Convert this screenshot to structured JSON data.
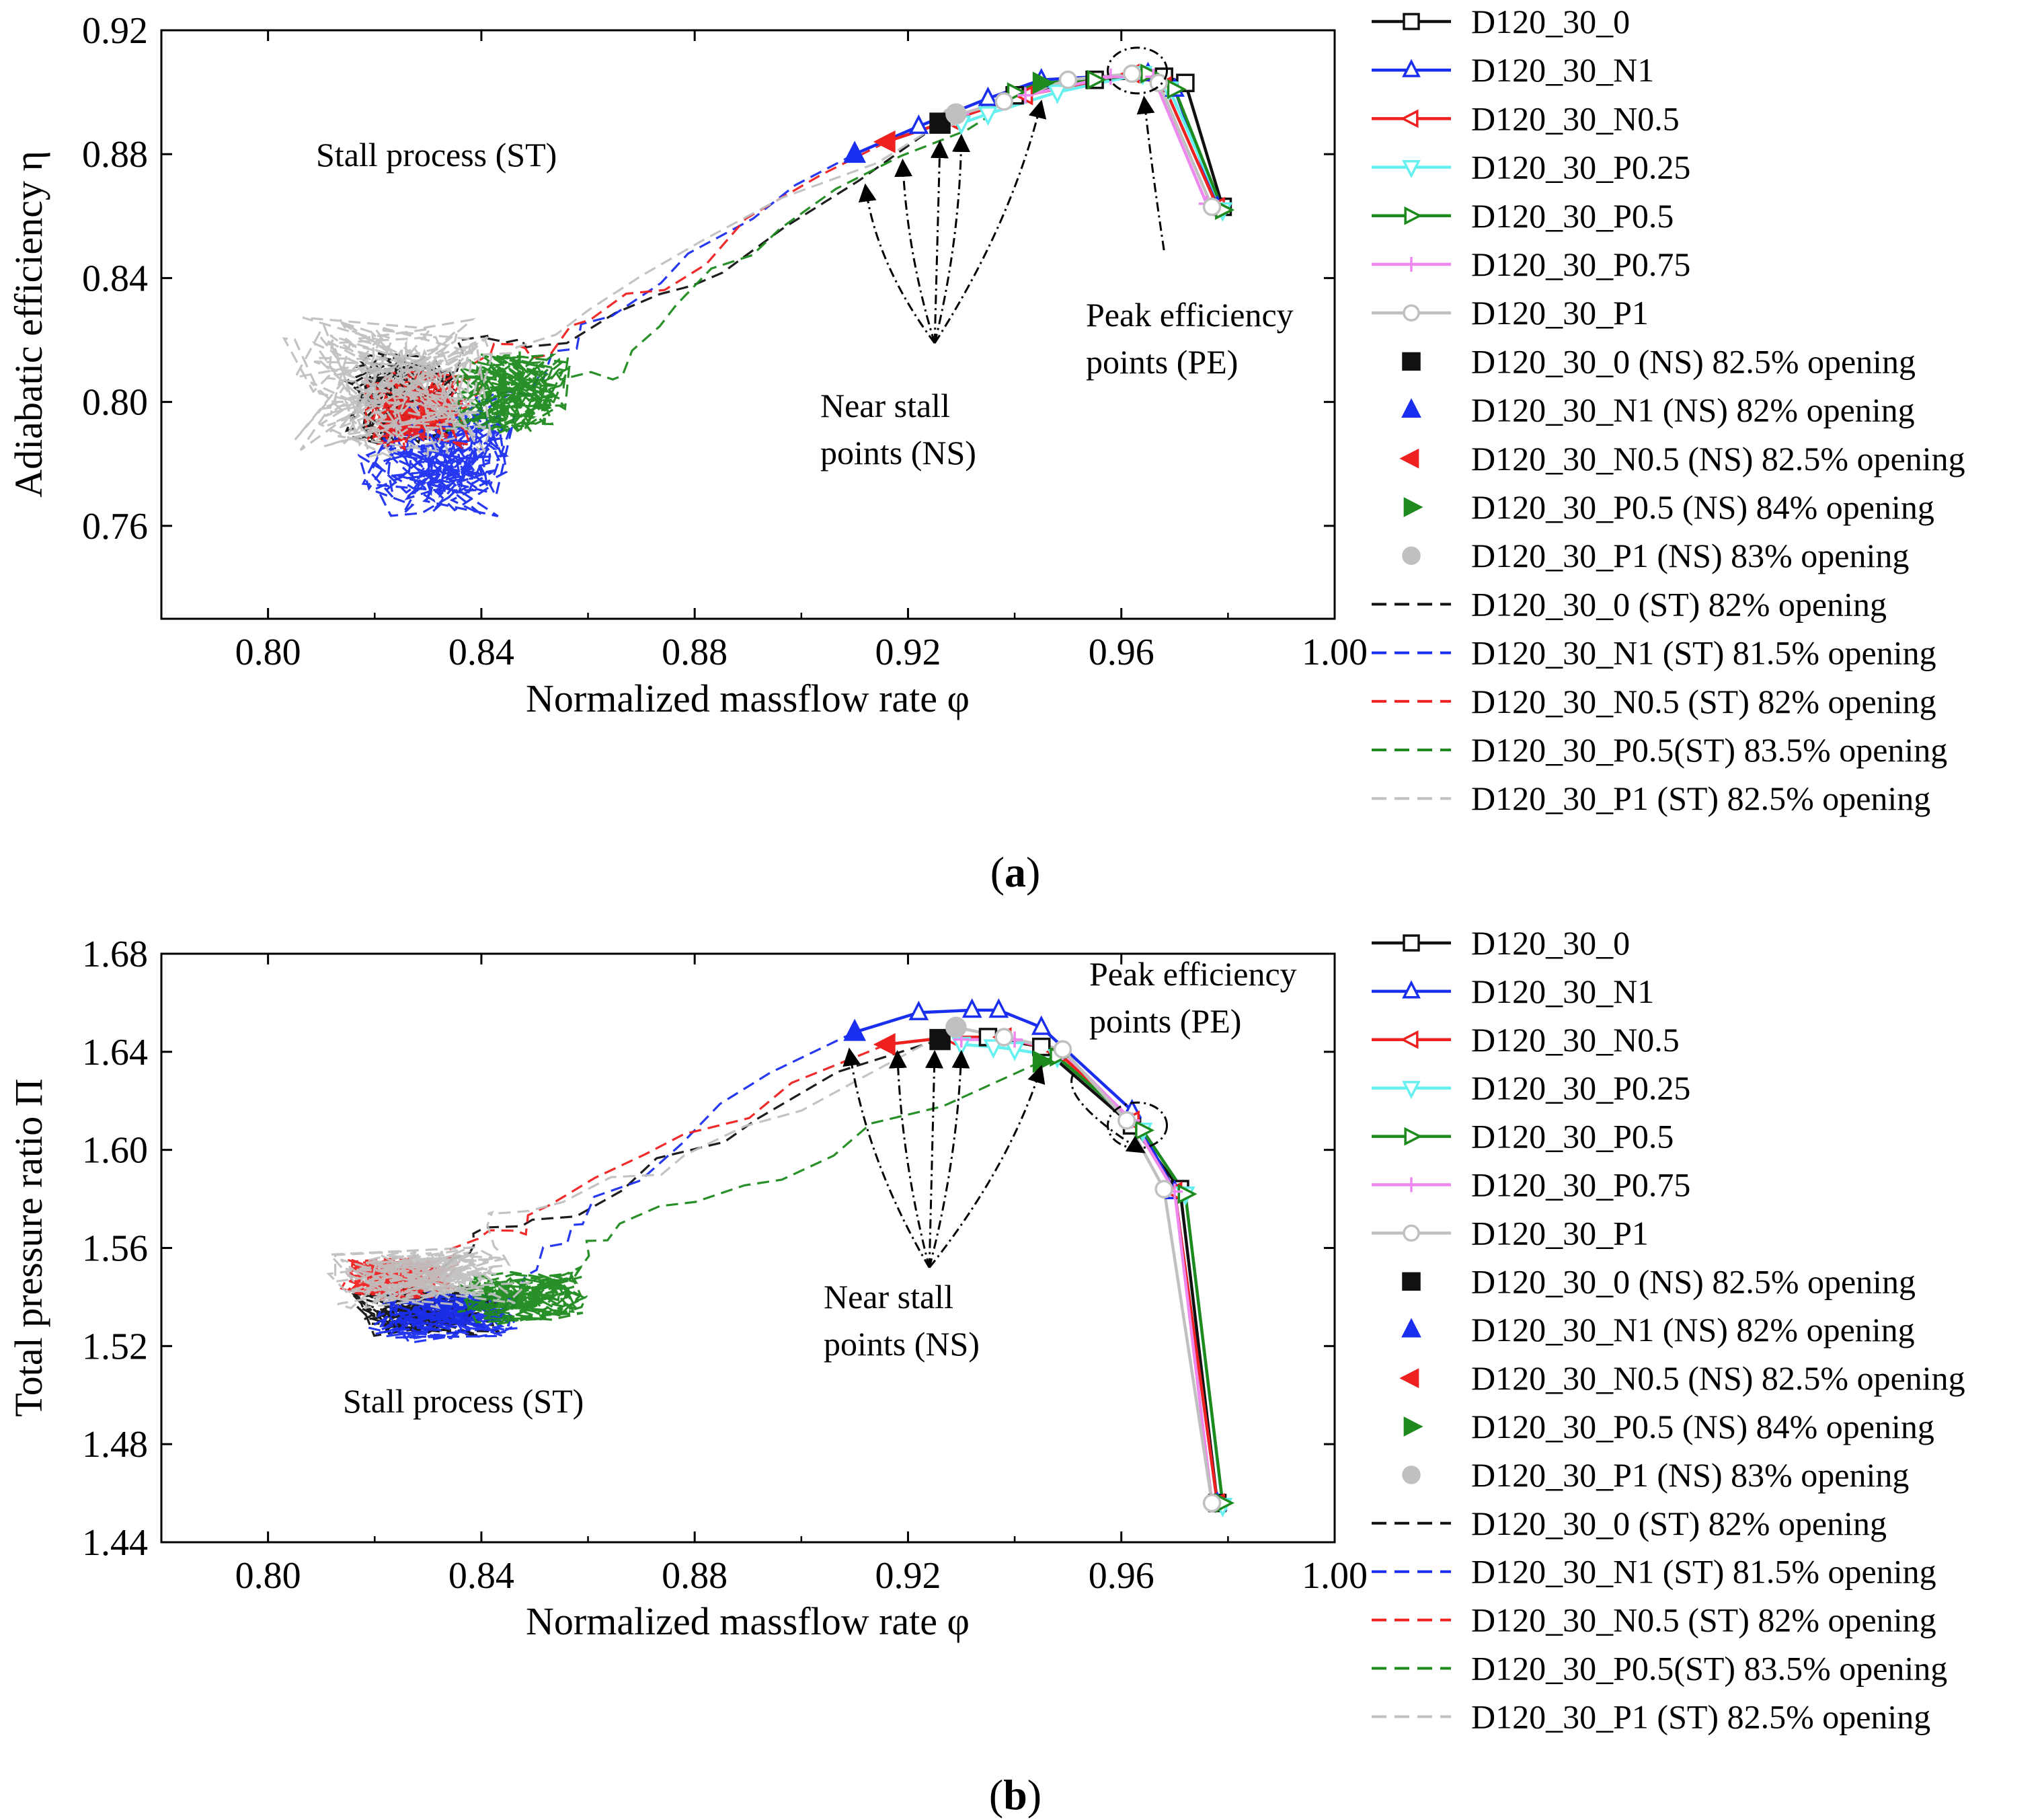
{
  "colors": {
    "D120_30_0": "#111111",
    "D120_30_N1": "#1a2ef0",
    "D120_30_N0.5": "#ee2020",
    "D120_30_P0.25": "#66f0f0",
    "D120_30_P0.5": "#1e8a1e",
    "D120_30_P0.75": "#ee88ee",
    "D120_30_P1": "#c0c0c0"
  },
  "legend": [
    {
      "label": "D120_30_0",
      "kind": "line",
      "key": "D120_30_0",
      "marker": "square-open"
    },
    {
      "label": "D120_30_N1",
      "kind": "line",
      "key": "D120_30_N1",
      "marker": "tri-up-open"
    },
    {
      "label": "D120_30_N0.5",
      "kind": "line",
      "key": "D120_30_N0.5",
      "marker": "tri-left-open"
    },
    {
      "label": "D120_30_P0.25",
      "kind": "line",
      "key": "D120_30_P0.25",
      "marker": "tri-down-open"
    },
    {
      "label": "D120_30_P0.5",
      "kind": "line",
      "key": "D120_30_P0.5",
      "marker": "tri-right-open"
    },
    {
      "label": "D120_30_P0.75",
      "kind": "line",
      "key": "D120_30_P0.75",
      "marker": "plus"
    },
    {
      "label": "D120_30_P1",
      "kind": "line",
      "key": "D120_30_P1",
      "marker": "circle-open"
    },
    {
      "label": "D120_30_0 (NS) 82.5% opening",
      "kind": "marker",
      "key": "D120_30_0",
      "marker": "square"
    },
    {
      "label": "D120_30_N1 (NS) 82% opening",
      "kind": "marker",
      "key": "D120_30_N1",
      "marker": "tri-up"
    },
    {
      "label": "D120_30_N0.5 (NS) 82.5% opening",
      "kind": "marker",
      "key": "D120_30_N0.5",
      "marker": "tri-left"
    },
    {
      "label": "D120_30_P0.5 (NS) 84% opening",
      "kind": "marker",
      "key": "D120_30_P0.5",
      "marker": "tri-right"
    },
    {
      "label": "D120_30_P1 (NS) 83% opening",
      "kind": "marker",
      "key": "D120_30_P1",
      "marker": "circle"
    },
    {
      "label": "D120_30_0 (ST) 82% opening",
      "kind": "dash",
      "key": "D120_30_0"
    },
    {
      "label": "D120_30_N1 (ST) 81.5% opening",
      "kind": "dash",
      "key": "D120_30_N1"
    },
    {
      "label": "D120_30_N0.5 (ST) 82% opening",
      "kind": "dash",
      "key": "D120_30_N0.5"
    },
    {
      "label": "D120_30_P0.5(ST) 83.5% opening",
      "kind": "dash",
      "key": "D120_30_P0.5"
    },
    {
      "label": "D120_30_P1 (ST) 82.5% opening",
      "kind": "dash",
      "key": "D120_30_P1"
    }
  ],
  "chart_data": [
    {
      "type": "line",
      "panel": "(a)",
      "caption": "a",
      "xlabel": "Normalized massflow rate φ",
      "ylabel": "Adiabatic efficiency η",
      "xlim": [
        0.78,
        1.0
      ],
      "ylim": [
        0.73,
        0.92
      ],
      "xticks": [
        "0.80",
        "0.84",
        "0.88",
        "0.92",
        "0.96",
        "1.00"
      ],
      "yticks": [
        "0.76",
        "0.80",
        "0.84",
        "0.88",
        "0.92"
      ],
      "annotations": {
        "stall": "Stall process (ST)",
        "near_stall_1": "Near stall",
        "near_stall_2": "points (NS)",
        "peak_1": "Peak efficiency",
        "peak_2": "points (PE)"
      },
      "series": [
        {
          "name": "D120_30_0",
          "marker": "square-open",
          "x": [
            0.926,
            0.94,
            0.955,
            0.968,
            0.972,
            0.979
          ],
          "y": [
            0.89,
            0.899,
            0.904,
            0.905,
            0.903,
            0.863
          ]
        },
        {
          "name": "D120_30_N1",
          "marker": "tri-up-open",
          "x": [
            0.91,
            0.922,
            0.935,
            0.945,
            0.965,
            0.97,
            0.978
          ],
          "y": [
            0.88,
            0.889,
            0.898,
            0.904,
            0.906,
            0.901,
            0.863
          ]
        },
        {
          "name": "D120_30_N0.5",
          "marker": "tri-left-open",
          "x": [
            0.916,
            0.928,
            0.942,
            0.962,
            0.968,
            0.978
          ],
          "y": [
            0.884,
            0.891,
            0.899,
            0.906,
            0.902,
            0.863
          ]
        },
        {
          "name": "D120_30_P0.25",
          "marker": "tri-down-open",
          "x": [
            0.93,
            0.935,
            0.948,
            0.964,
            0.969,
            0.979
          ],
          "y": [
            0.89,
            0.893,
            0.9,
            0.906,
            0.901,
            0.862
          ]
        },
        {
          "name": "D120_30_P0.5",
          "marker": "tri-right-open",
          "x": [
            0.94,
            0.945,
            0.955,
            0.965,
            0.97,
            0.979
          ],
          "y": [
            0.9,
            0.903,
            0.904,
            0.906,
            0.901,
            0.862
          ]
        },
        {
          "name": "D120_30_P0.75",
          "marker": "plus",
          "x": [
            0.93,
            0.942,
            0.958,
            0.966,
            0.976
          ],
          "y": [
            0.893,
            0.899,
            0.905,
            0.905,
            0.864
          ]
        },
        {
          "name": "D120_30_P1",
          "marker": "circle-open",
          "x": [
            0.928,
            0.938,
            0.95,
            0.962,
            0.967,
            0.977
          ],
          "y": [
            0.892,
            0.897,
            0.904,
            0.906,
            0.903,
            0.863
          ]
        }
      ],
      "near_stall": [
        {
          "name": "D120_30_0",
          "marker": "square",
          "x": 0.926,
          "y": 0.89
        },
        {
          "name": "D120_30_N1",
          "marker": "tri-up",
          "x": 0.91,
          "y": 0.88
        },
        {
          "name": "D120_30_N0.5",
          "marker": "tri-left",
          "x": 0.916,
          "y": 0.884
        },
        {
          "name": "D120_30_P0.5",
          "marker": "tri-right",
          "x": 0.945,
          "y": 0.903
        },
        {
          "name": "D120_30_P1",
          "marker": "circle",
          "x": 0.929,
          "y": 0.893
        }
      ],
      "stall_process": [
        {
          "name": "D120_30_0",
          "x_range": [
            0.8,
            0.9
          ],
          "y_range": [
            0.75,
            0.88
          ],
          "center": [
            0.825,
            0.8
          ],
          "scatter": [
            0.012,
            0.018
          ],
          "start": [
            0.926,
            0.89
          ]
        },
        {
          "name": "D120_30_N1",
          "x_range": [
            0.8,
            0.88
          ],
          "y_range": [
            0.74,
            0.86
          ],
          "center": [
            0.832,
            0.783
          ],
          "scatter": [
            0.016,
            0.022
          ],
          "start": [
            0.91,
            0.88
          ]
        },
        {
          "name": "D120_30_N0.5",
          "x_range": [
            0.81,
            0.88
          ],
          "y_range": [
            0.76,
            0.85
          ],
          "center": [
            0.828,
            0.797
          ],
          "scatter": [
            0.012,
            0.015
          ],
          "start": [
            0.916,
            0.884
          ]
        },
        {
          "name": "D120_30_P0.5",
          "x_range": [
            0.82,
            0.88
          ],
          "y_range": [
            0.77,
            0.86
          ],
          "center": [
            0.845,
            0.803
          ],
          "scatter": [
            0.014,
            0.016
          ],
          "start": [
            0.945,
            0.903
          ]
        },
        {
          "name": "D120_30_P1",
          "x_range": [
            0.78,
            0.87
          ],
          "y_range": [
            0.73,
            0.87
          ],
          "center": [
            0.823,
            0.805
          ],
          "scatter": [
            0.022,
            0.028
          ],
          "start": [
            0.929,
            0.893
          ]
        }
      ],
      "pe_circle": [
        0.963,
        0.907
      ],
      "ns_arrow_origin": [
        0.925,
        0.819
      ],
      "pe_arrow_origin": [
        0.968,
        0.849
      ],
      "ns_arrow_targets": [
        [
          0.912,
          0.87
        ],
        [
          0.919,
          0.878
        ],
        [
          0.926,
          0.884
        ],
        [
          0.93,
          0.886
        ],
        [
          0.945,
          0.897
        ]
      ]
    },
    {
      "type": "line",
      "panel": "(b)",
      "caption": "b",
      "xlabel": "Normalized massflow rate φ",
      "ylabel": "Total pressure ratio Π",
      "xlim": [
        0.78,
        1.0
      ],
      "ylim": [
        1.44,
        1.68
      ],
      "xticks": [
        "0.80",
        "0.84",
        "0.88",
        "0.92",
        "0.96",
        "1.00"
      ],
      "yticks": [
        "1.44",
        "1.48",
        "1.52",
        "1.56",
        "1.60",
        "1.64",
        "1.68"
      ],
      "annotations": {
        "stall": "Stall process (ST)",
        "near_stall_1": "Near stall",
        "near_stall_2": "points (NS)",
        "peak_1": "Peak efficiency",
        "peak_2": "points (PE)"
      },
      "series": [
        {
          "name": "D120_30_0",
          "marker": "square-open",
          "x": [
            0.926,
            0.935,
            0.945,
            0.962,
            0.971,
            0.978
          ],
          "y": [
            1.645,
            1.646,
            1.642,
            1.61,
            1.584,
            1.456
          ]
        },
        {
          "name": "D120_30_N1",
          "marker": "tri-up-open",
          "x": [
            0.91,
            0.922,
            0.932,
            0.937,
            0.945,
            0.962,
            0.97,
            0.978
          ],
          "y": [
            1.648,
            1.656,
            1.657,
            1.657,
            1.65,
            1.616,
            1.583,
            1.456
          ]
        },
        {
          "name": "D120_30_N0.5",
          "marker": "tri-left-open",
          "x": [
            0.916,
            0.928,
            0.938,
            0.948,
            0.962,
            0.97,
            0.978
          ],
          "y": [
            1.643,
            1.646,
            1.646,
            1.64,
            1.612,
            1.583,
            1.456
          ]
        },
        {
          "name": "D120_30_P0.25",
          "marker": "tri-down-open",
          "x": [
            0.93,
            0.936,
            0.94,
            0.948,
            0.964,
            0.972,
            0.979
          ],
          "y": [
            1.643,
            1.642,
            1.641,
            1.638,
            1.608,
            1.582,
            1.455
          ]
        },
        {
          "name": "D120_30_P0.5",
          "marker": "tri-right-open",
          "x": [
            0.945,
            0.948,
            0.964,
            0.972,
            0.979
          ],
          "y": [
            1.636,
            1.638,
            1.608,
            1.582,
            1.456
          ]
        },
        {
          "name": "D120_30_P0.75",
          "marker": "plus",
          "x": [
            0.93,
            0.94,
            0.949,
            0.962,
            0.97,
            0.977
          ],
          "y": [
            1.645,
            1.645,
            1.64,
            1.612,
            1.583,
            1.456
          ]
        },
        {
          "name": "D120_30_P1",
          "marker": "circle-open",
          "x": [
            0.929,
            0.938,
            0.949,
            0.961,
            0.968,
            0.977
          ],
          "y": [
            1.65,
            1.646,
            1.641,
            1.612,
            1.584,
            1.456
          ]
        }
      ],
      "near_stall": [
        {
          "name": "D120_30_0",
          "marker": "square",
          "x": 0.926,
          "y": 1.645
        },
        {
          "name": "D120_30_N1",
          "marker": "tri-up",
          "x": 0.91,
          "y": 1.648
        },
        {
          "name": "D120_30_N0.5",
          "marker": "tri-left",
          "x": 0.916,
          "y": 1.643
        },
        {
          "name": "D120_30_P0.5",
          "marker": "tri-right",
          "x": 0.945,
          "y": 1.636
        },
        {
          "name": "D120_30_P1",
          "marker": "circle",
          "x": 0.929,
          "y": 1.65
        }
      ],
      "stall_process": [
        {
          "name": "D120_30_0",
          "x_range": [
            0.8,
            0.895
          ],
          "y_range": [
            1.51,
            1.58
          ],
          "center": [
            0.83,
            1.535
          ],
          "scatter": [
            0.016,
            0.012
          ],
          "start": [
            0.926,
            1.645
          ]
        },
        {
          "name": "D120_30_N1",
          "x_range": [
            0.8,
            0.88
          ],
          "y_range": [
            1.5,
            1.57
          ],
          "center": [
            0.833,
            1.532
          ],
          "scatter": [
            0.016,
            0.012
          ],
          "start": [
            0.91,
            1.648
          ]
        },
        {
          "name": "D120_30_N0.5",
          "x_range": [
            0.81,
            0.87
          ],
          "y_range": [
            1.52,
            1.57
          ],
          "center": [
            0.825,
            1.548
          ],
          "scatter": [
            0.012,
            0.01
          ],
          "start": [
            0.916,
            1.643
          ]
        },
        {
          "name": "D120_30_P0.5",
          "x_range": [
            0.82,
            0.88
          ],
          "y_range": [
            1.51,
            1.57
          ],
          "center": [
            0.848,
            1.54
          ],
          "scatter": [
            0.014,
            0.012
          ],
          "start": [
            0.945,
            1.636
          ]
        },
        {
          "name": "D120_30_P1",
          "x_range": [
            0.78,
            0.89
          ],
          "y_range": [
            1.51,
            1.59
          ],
          "center": [
            0.83,
            1.548
          ],
          "scatter": [
            0.02,
            0.014
          ],
          "start": [
            0.929,
            1.65
          ]
        }
      ],
      "pe_circle": [
        0.963,
        1.61
      ],
      "ns_arrow_origin": [
        0.924,
        1.552
      ],
      "pe_arrow_origin": [
        0.951,
        1.631
      ],
      "ns_arrow_targets": [
        [
          0.909,
          1.641
        ],
        [
          0.918,
          1.64
        ],
        [
          0.925,
          1.64
        ],
        [
          0.93,
          1.64
        ],
        [
          0.945,
          1.634
        ]
      ]
    }
  ]
}
